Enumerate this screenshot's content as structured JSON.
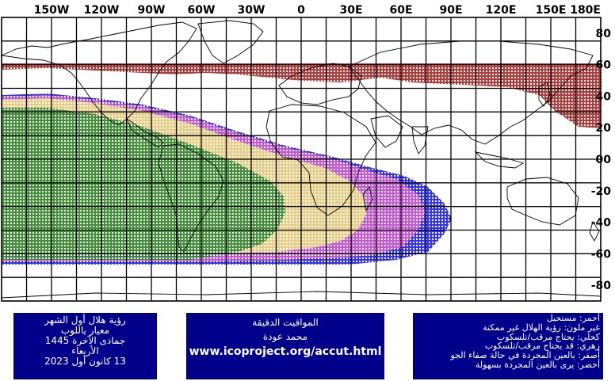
{
  "map": {
    "top_lon_labels": [
      "150W",
      "120W",
      "90W",
      "60W",
      "30W",
      "0",
      "30E",
      "60E",
      "90E",
      "120E",
      "150E",
      "180E"
    ],
    "right_lat_labels": [
      "80",
      "60",
      "40",
      "20",
      "00",
      "-20",
      "-40",
      "-60",
      "-80"
    ],
    "lon_range": [
      -180,
      180
    ],
    "lat_range": [
      -90,
      90
    ],
    "grid_step_degrees": 15,
    "colors": {
      "red": "#b22222",
      "blue": "#1a1aff",
      "magenta": "#dd55dd",
      "yellow": "#f0d878",
      "green": "#2e8b2e",
      "grid": "#000000",
      "coast": "#000000"
    }
  },
  "panels": {
    "left": {
      "lines": [
        "رؤية هلال أول الشهر",
        "معيار ياللوب",
        "جمادى الآخرة 1445",
        "الأربعاء",
        "13 كانون أول 2023"
      ]
    },
    "middle": {
      "lines": [
        "المواقيت الدقيقة",
        "محمد عودة"
      ],
      "url": "www.icoproject.org/accut.html"
    },
    "right": {
      "lines": [
        "أحمر: مستحيل",
        "غير ملون: رؤية الهلال غير ممكنة",
        "كحلي: يحتاج مرقب/تلسكوب",
        "زهري: قد يحتاج مرقب/تلسكوب",
        "أصفر: بالعين المجردة في حالة صفاء الجو",
        "أخضر: يرى بالعين المجردة بسهولة"
      ]
    }
  }
}
